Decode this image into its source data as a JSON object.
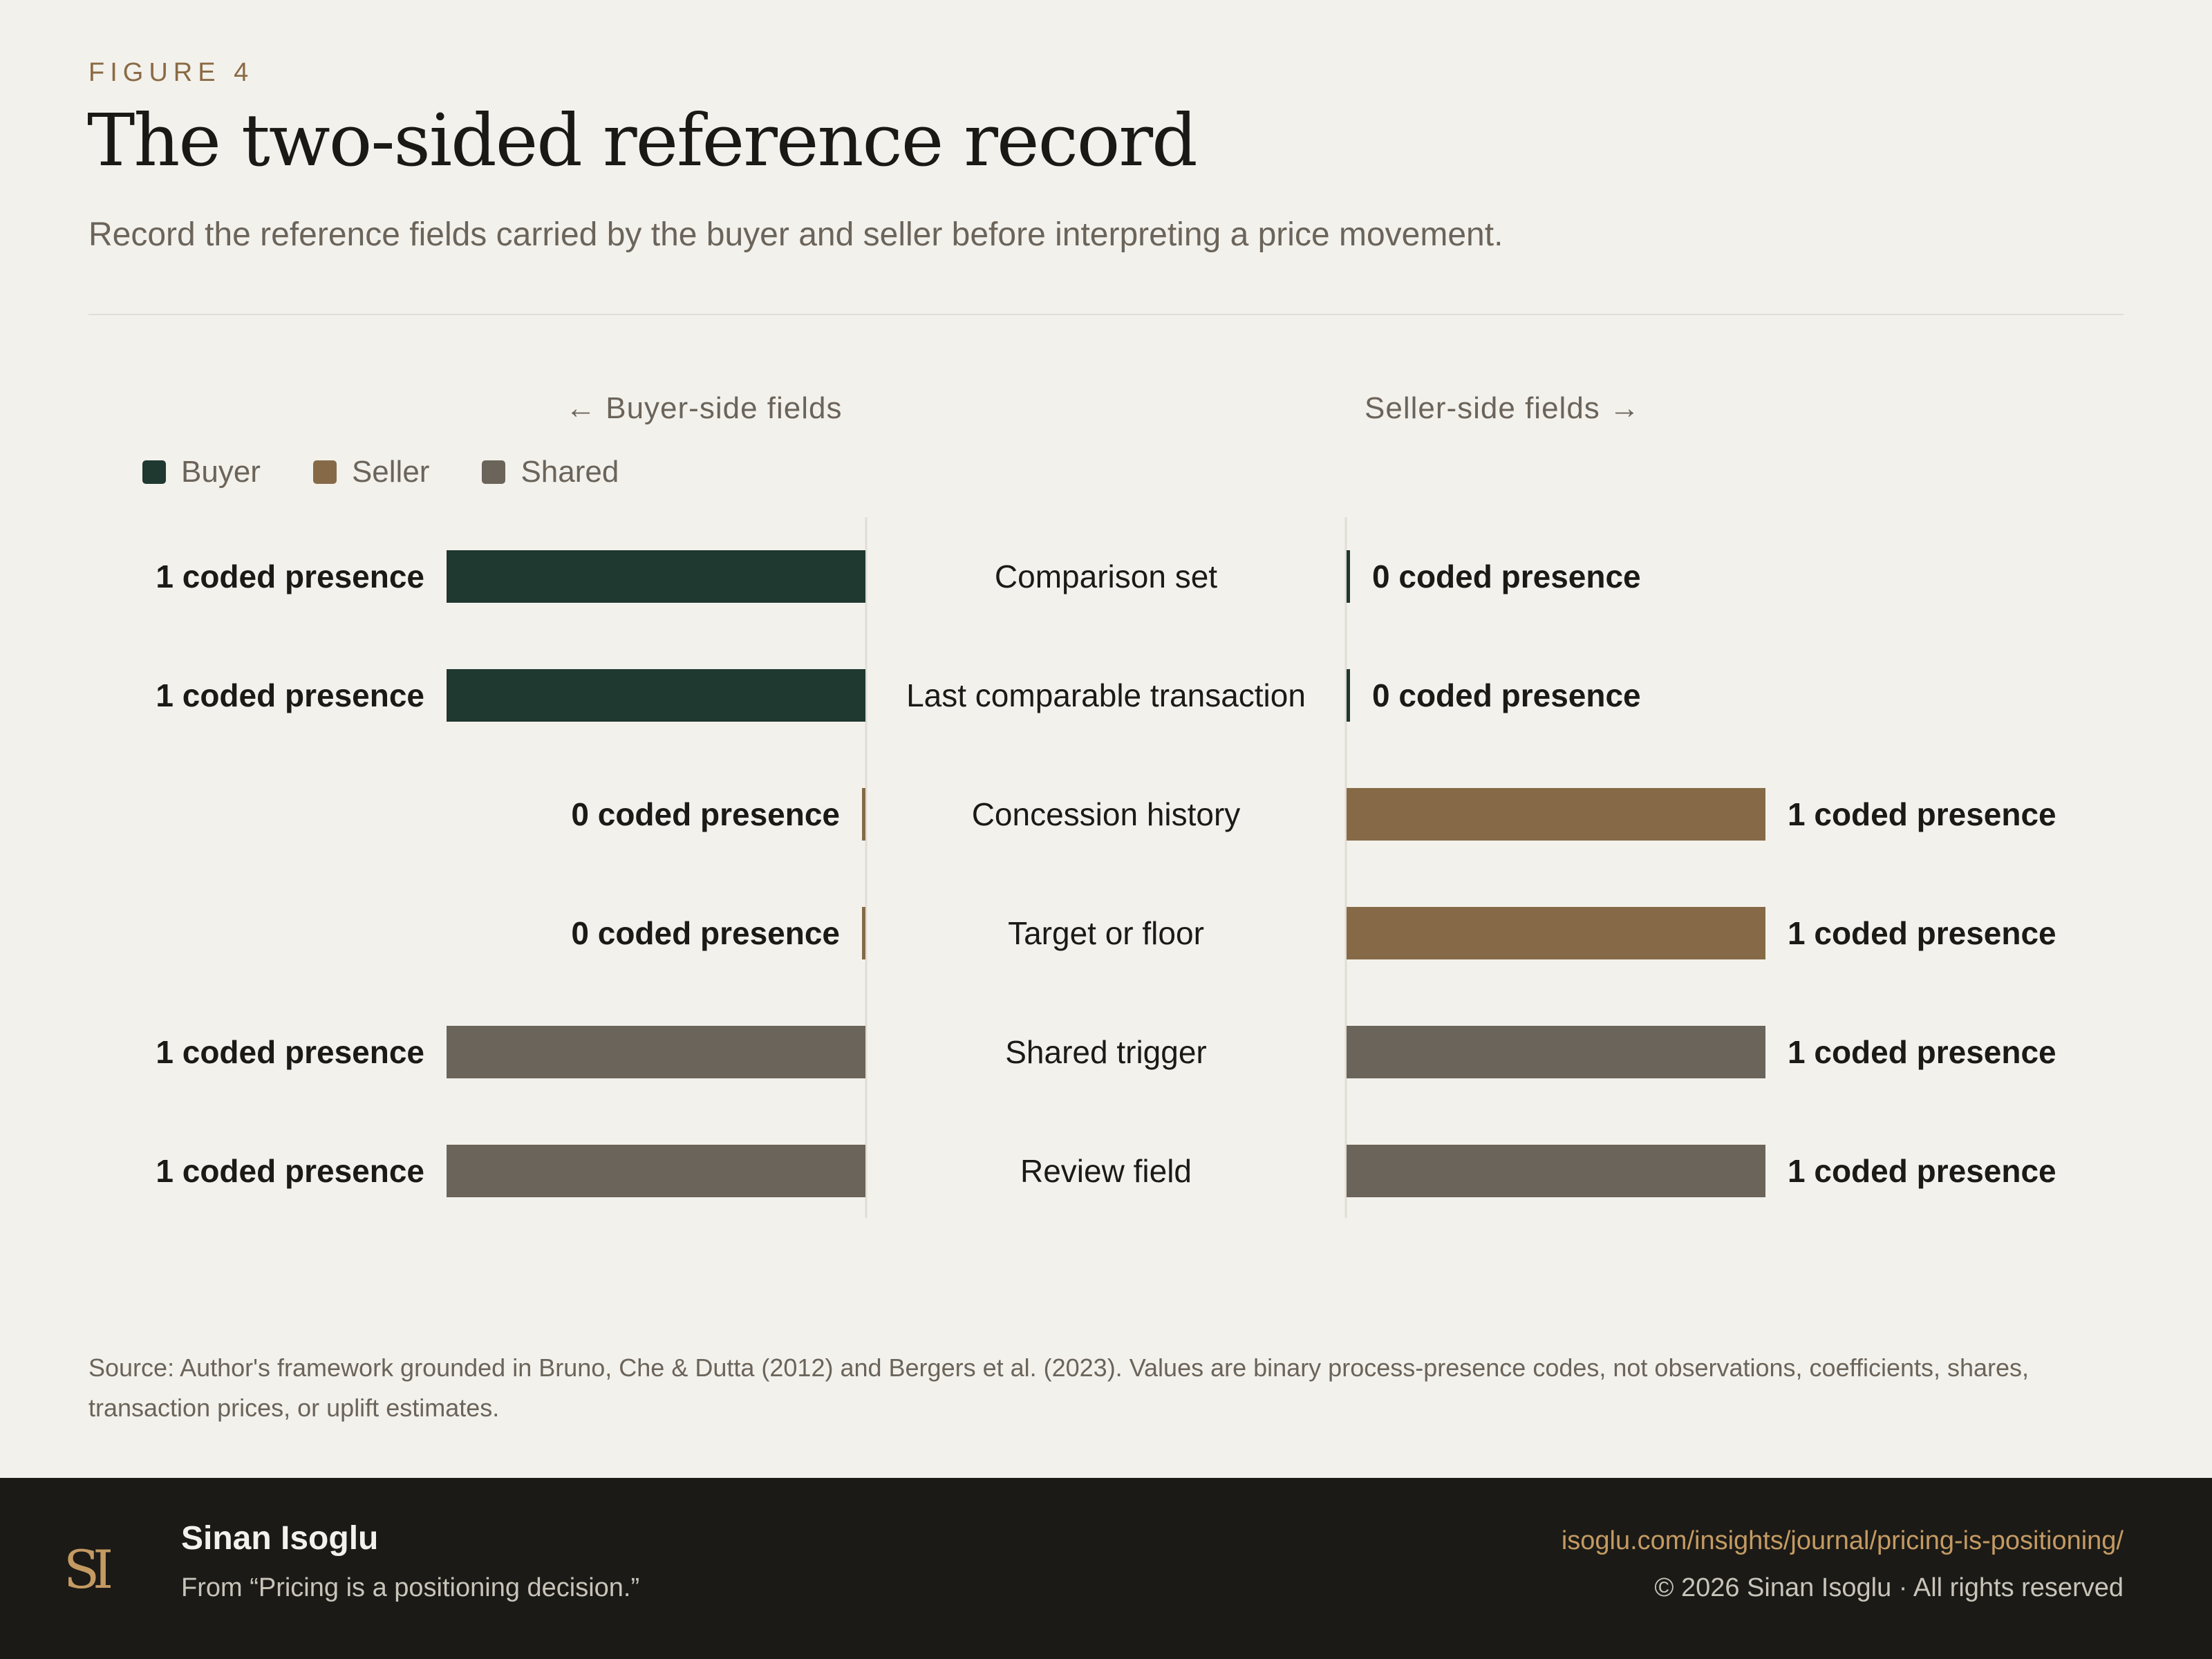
{
  "header": {
    "eyebrow": "FIGURE 4",
    "title": "The two-sided reference record",
    "subtitle": "Record the reference fields carried by the buyer and seller before interpreting a price movement."
  },
  "chart_data": {
    "type": "bar",
    "title": "The two-sided reference record",
    "left_axis_label": "← Buyer-side fields",
    "right_axis_label": "Seller-side fields →",
    "legend": [
      {
        "name": "Buyer",
        "color": "#1f3830"
      },
      {
        "name": "Seller",
        "color": "#866a47"
      },
      {
        "name": "Shared",
        "color": "#6b645a"
      }
    ],
    "categories": [
      "Comparison set",
      "Last comparable transaction",
      "Concession history",
      "Target or floor",
      "Shared trigger",
      "Review field"
    ],
    "category_group": [
      "Buyer",
      "Buyer",
      "Seller",
      "Seller",
      "Shared",
      "Shared"
    ],
    "series": [
      {
        "name": "Buyer-side fields",
        "values": [
          1,
          1,
          0,
          0,
          1,
          1
        ]
      },
      {
        "name": "Seller-side fields",
        "values": [
          0,
          0,
          1,
          1,
          1,
          1
        ]
      }
    ],
    "value_label_suffix": " coded presence",
    "xlim": [
      0,
      1
    ],
    "grid": false,
    "legend_placement": "top-left"
  },
  "source": "Source: Author's framework grounded in Bruno, Che & Dutta (2012) and Bergers et al. (2023). Values are binary process-presence codes, not observations, coefficients, shares, transaction prices, or uplift estimates.",
  "footer": {
    "logo_text": "SI",
    "author": "Sinan Isoglu",
    "from": "From “Pricing is a positioning decision.”",
    "url": "isoglu.com/insights/journal/pricing-is-positioning/",
    "copyright": "© 2026 Sinan Isoglu · All rights reserved"
  }
}
